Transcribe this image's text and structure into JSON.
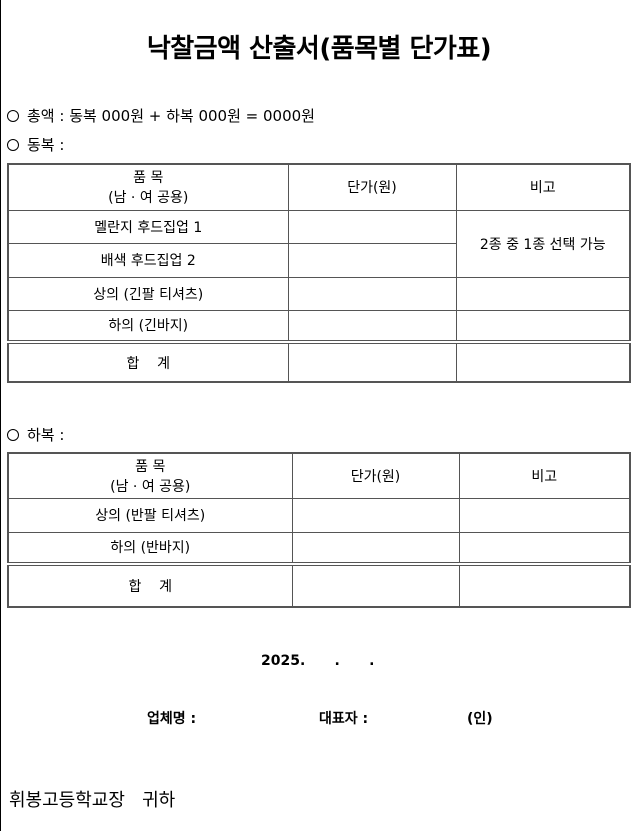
{
  "title": "낙찰금액 산출서(품목별 단가표)",
  "total_line": "총액 : 동복 000원 + 하복 000원 = 0000원",
  "winter": {
    "label": "동복 :",
    "headers": {
      "item": "품  목",
      "item_sub": "(남 · 여 공용)",
      "price": "단가(원)",
      "note": "비고"
    },
    "rows": [
      {
        "item": "멜란지 후드집업 1"
      },
      {
        "item": "배색 후드집업 2"
      },
      {
        "item": "상의 (긴팔 티셔츠)"
      },
      {
        "item": "하의 (긴바지)"
      }
    ],
    "merged_note": "2종 중 1종 선택 가능",
    "total_label": "합    계"
  },
  "summer": {
    "label": "하복 :",
    "headers": {
      "item": "품  목",
      "item_sub": "(남 · 여 공용)",
      "price": "단가(원)",
      "note": "비고"
    },
    "rows": [
      {
        "item": "상의 (반팔 티셔츠)"
      },
      {
        "item": "하의 (반바지)"
      }
    ],
    "total_label": "합    계"
  },
  "date": "2025.      .      .",
  "signature": {
    "company_label": "업체명 :",
    "rep_label": "대표자 :",
    "seal": "(인)"
  },
  "addressee": "휘봉고등학교장   귀하"
}
